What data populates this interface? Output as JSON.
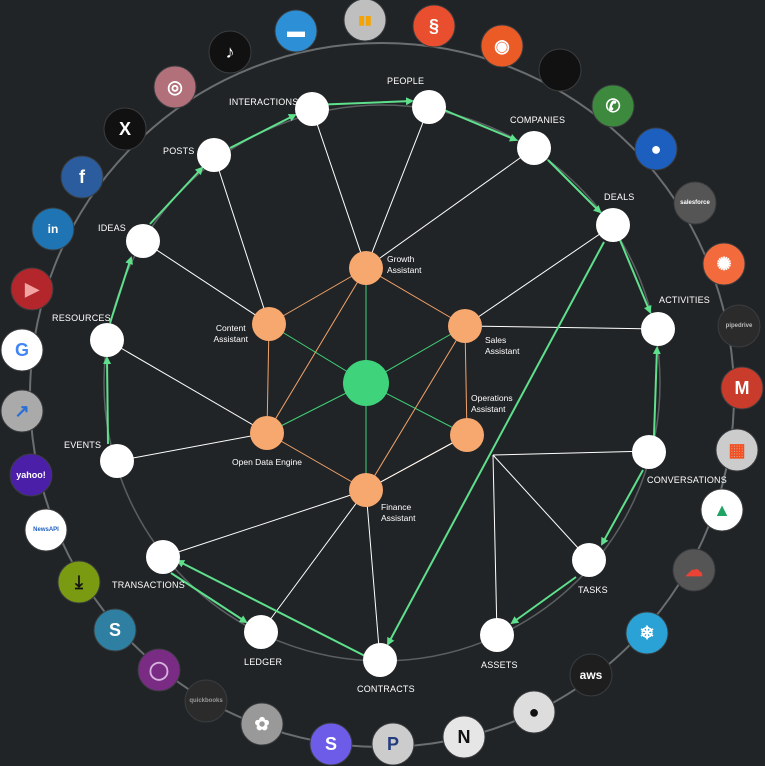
{
  "diagram": {
    "outer_nodes": {
      "interactions": "INTERACTIONS",
      "people": "PEOPLE",
      "companies": "COMPANIES",
      "deals": "DEALS",
      "activities": "ACTIVITIES",
      "conversations": "CONVERSATIONS",
      "tasks": "TASKS",
      "assets": "ASSETS",
      "contracts": "CONTRACTS",
      "ledger": "LEDGER",
      "transactions": "TRANSACTIONS",
      "events": "EVENTS",
      "resources": "RESOURCES",
      "ideas": "IDEAS",
      "posts": "POSTS"
    },
    "assistants": {
      "growth": [
        "Growth",
        "Assistant"
      ],
      "sales": [
        "Sales",
        "Assistant"
      ],
      "operations": [
        "Operations",
        "Assistant"
      ],
      "finance": [
        "Finance",
        "Assistant"
      ],
      "open_data_engine": "Open Data Engine",
      "content": [
        "Content",
        "Assistant"
      ]
    },
    "colors": {
      "background": "#212426",
      "node": "#ffffff",
      "assistant": "#f7a86f",
      "core": "#3fd47c",
      "flow": "#5ee08c"
    }
  },
  "integrations": [
    {
      "name": "tiktok-icon",
      "glyph": "♪",
      "bg": "#111111",
      "fg": "#ffffff"
    },
    {
      "name": "messaging-icon",
      "glyph": "▬",
      "bg": "#2d8fd5",
      "fg": "#ffffff"
    },
    {
      "name": "google-analytics-icon",
      "glyph": "▮▮",
      "bg": "#bfbfbf",
      "fg": "#f4a300"
    },
    {
      "name": "stripe-swirl-icon",
      "glyph": "§",
      "bg": "#e94f2e",
      "fg": "#ffffff"
    },
    {
      "name": "semrush-icon",
      "glyph": "◉",
      "bg": "#ea5b25",
      "fg": "#ffffff"
    },
    {
      "name": "apple-icon",
      "glyph": "",
      "bg": "#111111",
      "fg": "#ffffff"
    },
    {
      "name": "whatsapp-icon",
      "glyph": "✆",
      "bg": "#3d8a3f",
      "fg": "#ffffff"
    },
    {
      "name": "contacts-icon",
      "glyph": "●",
      "bg": "#1d5fbf",
      "fg": "#ffffff"
    },
    {
      "name": "salesforce-icon",
      "glyph": "salesforce",
      "bg": "#555555",
      "fg": "#ffffff"
    },
    {
      "name": "hubspot-icon",
      "glyph": "✺",
      "bg": "#f36b3d",
      "fg": "#ffffff"
    },
    {
      "name": "pipedrive-icon",
      "glyph": "pipedrive",
      "bg": "#2b2b2b",
      "fg": "#bbbbbb"
    },
    {
      "name": "gmail-icon",
      "glyph": "M",
      "bg": "#c93c2c",
      "fg": "#ffffff"
    },
    {
      "name": "microsoft-icon",
      "glyph": "▦",
      "bg": "#cccccc",
      "fg": "#f25022"
    },
    {
      "name": "google-drive-icon",
      "glyph": "▲",
      "bg": "#ffffff",
      "fg": "#1fa463"
    },
    {
      "name": "google-cloud-icon",
      "glyph": "☁",
      "bg": "#555555",
      "fg": "#ea4335"
    },
    {
      "name": "snowflake-icon",
      "glyph": "❄",
      "bg": "#2aa2d6",
      "fg": "#ffffff"
    },
    {
      "name": "aws-icon",
      "glyph": "aws",
      "bg": "#1e1e1e",
      "fg": "#ffffff"
    },
    {
      "name": "github-icon",
      "glyph": "●",
      "bg": "#dddddd",
      "fg": "#111111"
    },
    {
      "name": "notion-icon",
      "glyph": "N",
      "bg": "#e6e6e6",
      "fg": "#111111"
    },
    {
      "name": "paypal-icon",
      "glyph": "P",
      "bg": "#cccccc",
      "fg": "#253b80"
    },
    {
      "name": "stripe-icon",
      "glyph": "S",
      "bg": "#6c5ce7",
      "fg": "#ffffff"
    },
    {
      "name": "openai-icon",
      "glyph": "✿",
      "bg": "#999999",
      "fg": "#ffffff"
    },
    {
      "name": "quickbooks-icon",
      "glyph": "quickbooks",
      "bg": "#2b2b2b",
      "fg": "#999999"
    },
    {
      "name": "ring-app-icon",
      "glyph": "◯",
      "bg": "#7a2c84",
      "fg": "#d7b1dd"
    },
    {
      "name": "scribd-icon",
      "glyph": "S",
      "bg": "#2e7fa1",
      "fg": "#ffffff"
    },
    {
      "name": "download-icon",
      "glyph": "⤓",
      "bg": "#7a9a12",
      "fg": "#111111"
    },
    {
      "name": "newsapi-icon",
      "glyph": "NewsAPI",
      "bg": "#ffffff",
      "fg": "#1e5fbf"
    },
    {
      "name": "yahoo-finance-icon",
      "glyph": "yahoo!",
      "bg": "#4b1fa8",
      "fg": "#ffffff"
    },
    {
      "name": "trend-icon",
      "glyph": "↗",
      "bg": "#aaaaaa",
      "fg": "#2a6fd6"
    },
    {
      "name": "google-icon",
      "glyph": "G",
      "bg": "#ffffff",
      "fg": "#4285f4"
    },
    {
      "name": "youtube-icon",
      "glyph": "▶",
      "bg": "#b3262b",
      "fg": "#f4a3a3"
    },
    {
      "name": "linkedin-icon",
      "glyph": "in",
      "bg": "#1f75b3",
      "fg": "#ffffff"
    },
    {
      "name": "facebook-icon",
      "glyph": "f",
      "bg": "#2a5c9e",
      "fg": "#ffffff"
    },
    {
      "name": "x-icon",
      "glyph": "X",
      "bg": "#111111",
      "fg": "#ffffff"
    },
    {
      "name": "instagram-icon",
      "glyph": "◎",
      "bg": "#b1707a",
      "fg": "#ffffff"
    }
  ]
}
